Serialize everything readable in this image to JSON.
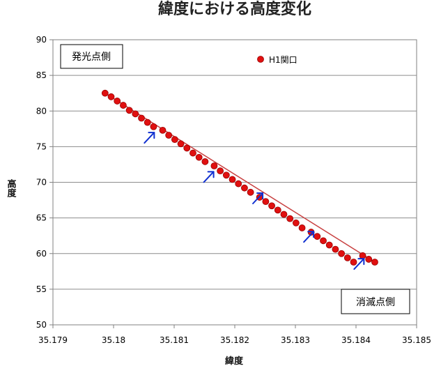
{
  "chart_data": {
    "type": "scatter",
    "title": "緯度における高度変化",
    "xlabel": "緯度",
    "ylabel": "高度",
    "xlim": [
      35.179,
      35.185
    ],
    "ylim": [
      50,
      90
    ],
    "xticks": [
      35.179,
      35.18,
      35.181,
      35.182,
      35.183,
      35.184,
      35.185
    ],
    "xtick_labels": [
      "35.179",
      "35.18",
      "35.181",
      "35.182",
      "35.183",
      "35.184",
      "35.185"
    ],
    "yticks": [
      50,
      55,
      60,
      65,
      70,
      75,
      80,
      85,
      90
    ],
    "ytick_labels": [
      "50",
      "55",
      "60",
      "65",
      "70",
      "75",
      "80",
      "85",
      "90"
    ],
    "grid": "horizontal",
    "legend_position": "top-right",
    "series": [
      {
        "name": "H1関口",
        "color": "#e01010",
        "x": [
          35.17986,
          35.17996,
          35.18006,
          35.18016,
          35.18026,
          35.18036,
          35.18046,
          35.18056,
          35.18066,
          35.18081,
          35.18091,
          35.18101,
          35.18111,
          35.18121,
          35.18131,
          35.18141,
          35.18151,
          35.18166,
          35.18176,
          35.18186,
          35.18196,
          35.18206,
          35.18216,
          35.18226,
          35.18241,
          35.18251,
          35.18261,
          35.18271,
          35.18281,
          35.18291,
          35.18301,
          35.18311,
          35.18326,
          35.18336,
          35.18346,
          35.18356,
          35.18366,
          35.18376,
          35.18386,
          35.18396,
          35.18411,
          35.18421,
          35.18431
        ],
        "y": [
          82.5,
          82.0,
          81.4,
          80.8,
          80.1,
          79.6,
          79.0,
          78.4,
          77.8,
          77.3,
          76.6,
          76.0,
          75.4,
          74.8,
          74.1,
          73.5,
          72.9,
          72.3,
          71.6,
          71.0,
          70.4,
          69.8,
          69.2,
          68.6,
          67.9,
          67.3,
          66.7,
          66.1,
          65.5,
          64.9,
          64.3,
          63.6,
          63.0,
          62.4,
          61.8,
          61.2,
          60.6,
          60.0,
          59.4,
          58.8,
          59.7,
          59.2,
          58.8
        ]
      }
    ],
    "trend_line": {
      "x": [
        35.17986,
        35.18431
      ],
      "y": [
        82.5,
        58.8
      ],
      "color": "#c84040"
    },
    "annotations": [
      {
        "text": "発光点側",
        "position": "top-left"
      },
      {
        "text": "消滅点側",
        "position": "bottom-right"
      }
    ],
    "arrows": {
      "color": "#1030d0",
      "points": [
        {
          "x": 35.18059,
          "y": 76.3
        },
        {
          "x": 35.18157,
          "y": 70.8
        },
        {
          "x": 35.18238,
          "y": 67.8
        },
        {
          "x": 35.18322,
          "y": 62.4
        },
        {
          "x": 35.18405,
          "y": 58.6
        }
      ]
    }
  }
}
